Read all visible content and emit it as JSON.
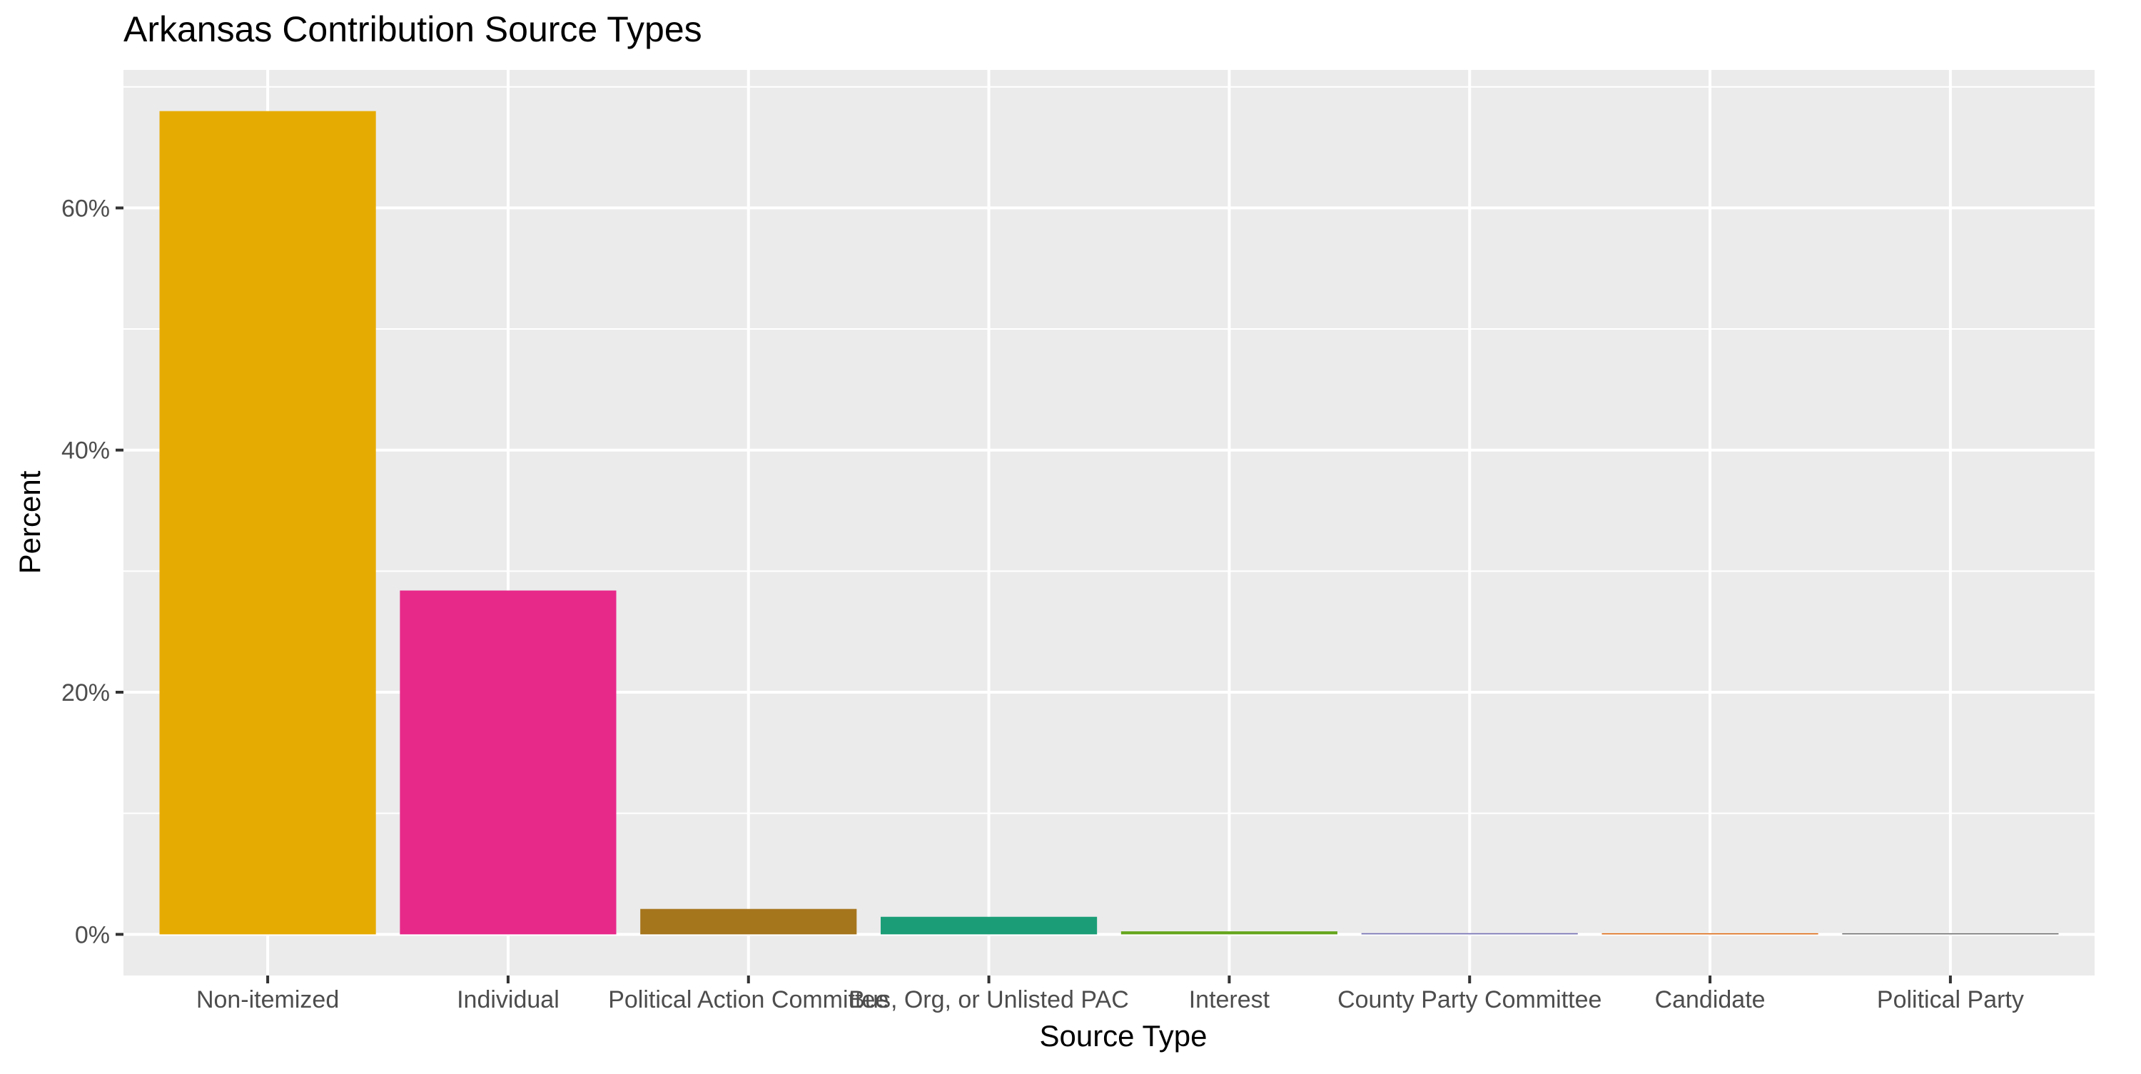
{
  "chart_data": {
    "type": "bar",
    "title": "Arkansas Contribution Source Types",
    "xlabel": "Source Type",
    "ylabel": "Percent",
    "categories": [
      "Non-itemized",
      "Individual",
      "Political Action Committee",
      "Bus, Org, or Unlisted PAC",
      "Interest",
      "County Party Committee",
      "Candidate",
      "Political Party"
    ],
    "values": [
      68.0,
      28.4,
      2.1,
      1.45,
      0.25,
      0.1,
      0.06,
      0.04
    ],
    "colors": [
      "#e6ab02",
      "#e7298a",
      "#a6761d",
      "#1b9e77",
      "#66a61e",
      "#7570b3",
      "#d95f02",
      "#666666"
    ],
    "ylim": [
      -3.4,
      71.4
    ],
    "yticks": [
      0,
      20,
      40,
      60
    ],
    "ytick_labels": [
      "0%",
      "20%",
      "40%",
      "60%"
    ],
    "grid": true,
    "panel_background": "#ebebeb",
    "grid_color": "#ffffff"
  }
}
